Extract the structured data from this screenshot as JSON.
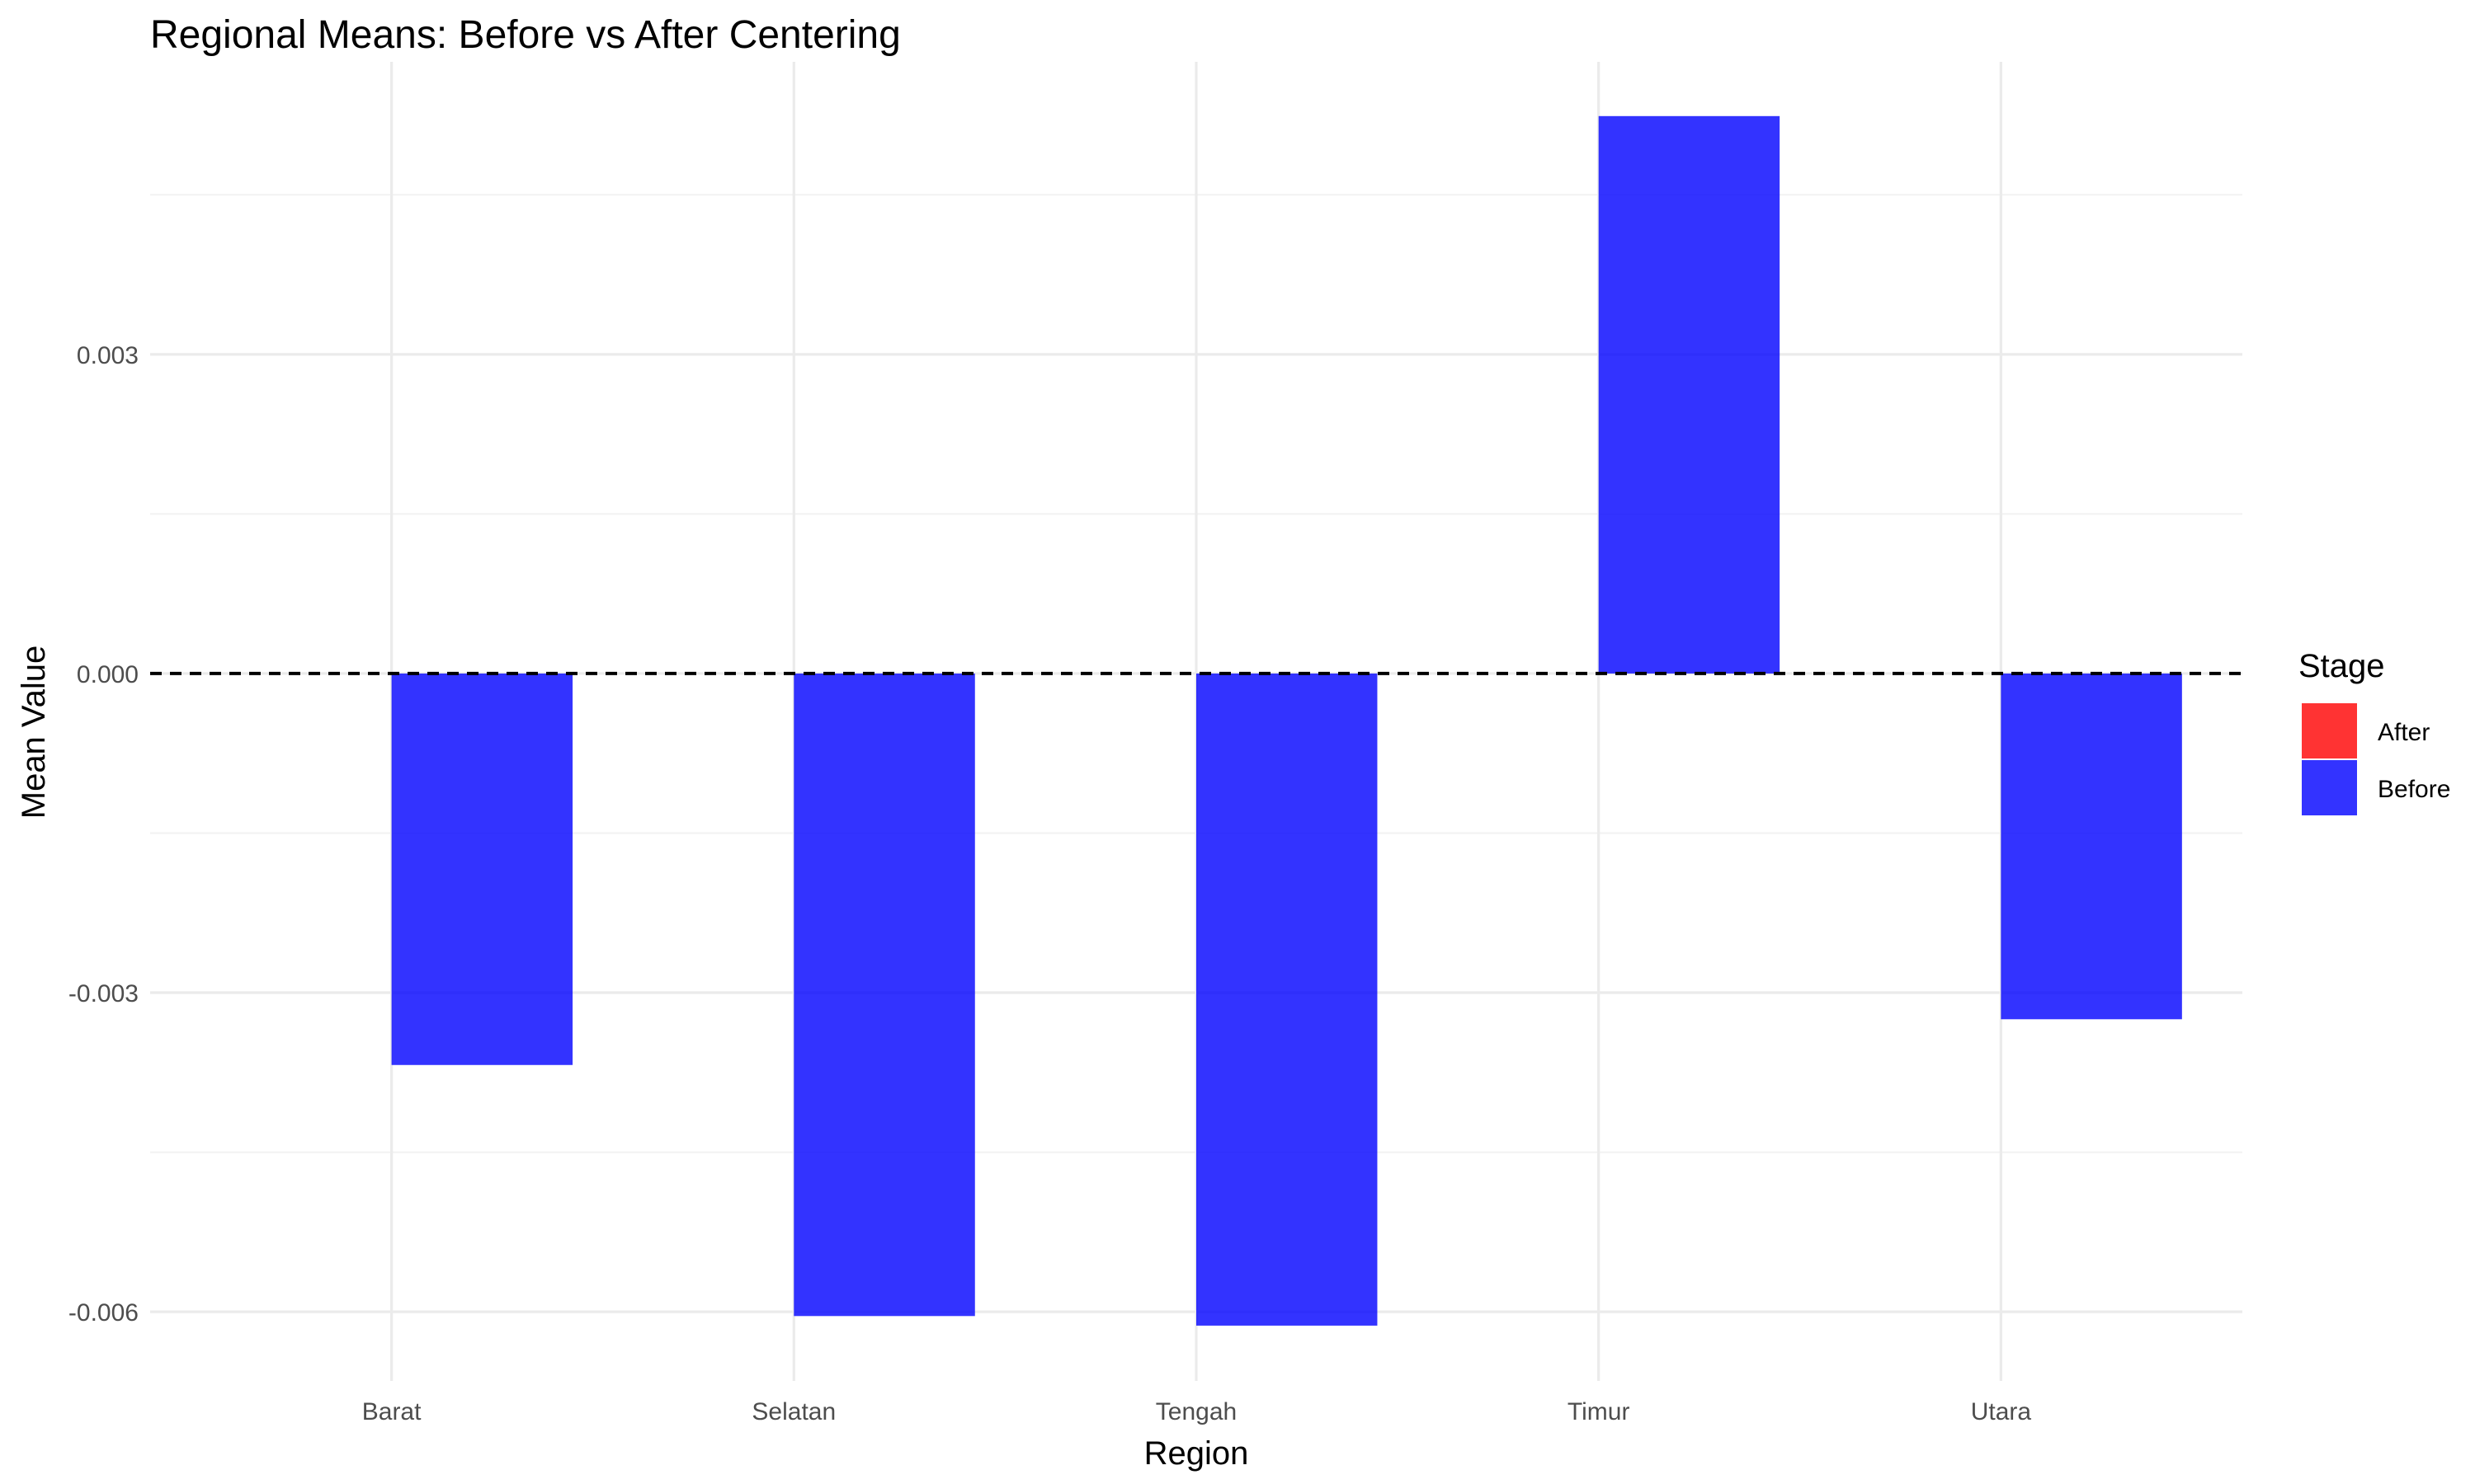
{
  "chart_data": {
    "type": "bar",
    "title": "Regional Means: Before vs After Centering",
    "xlabel": "Region",
    "ylabel": "Mean Value",
    "categories": [
      "Barat",
      "Selatan",
      "Tengah",
      "Timur",
      "Utara"
    ],
    "series": [
      {
        "name": "Before",
        "color": "#0000ff",
        "opacity": 0.8,
        "values": [
          -0.00368,
          -0.00604,
          -0.00613,
          0.00524,
          -0.00325
        ]
      },
      {
        "name": "After",
        "color": "#ff0000",
        "opacity": 0.8,
        "values": [
          0,
          0,
          0,
          0,
          0
        ]
      }
    ],
    "ylim": [
      -0.00665,
      0.00575
    ],
    "yticks": [
      -0.006,
      -0.003,
      0.0,
      0.003
    ],
    "ytick_labels": [
      "-0.006",
      "-0.003",
      "0.000",
      "0.003"
    ],
    "reference_line": {
      "y": 0,
      "style": "dashed",
      "color": "#000000"
    },
    "grid": true,
    "legend": {
      "title": "Stage",
      "position": "right",
      "entries": [
        {
          "label": "After",
          "color": "#ff3333"
        },
        {
          "label": "Before",
          "color": "#3333ff"
        }
      ]
    }
  }
}
